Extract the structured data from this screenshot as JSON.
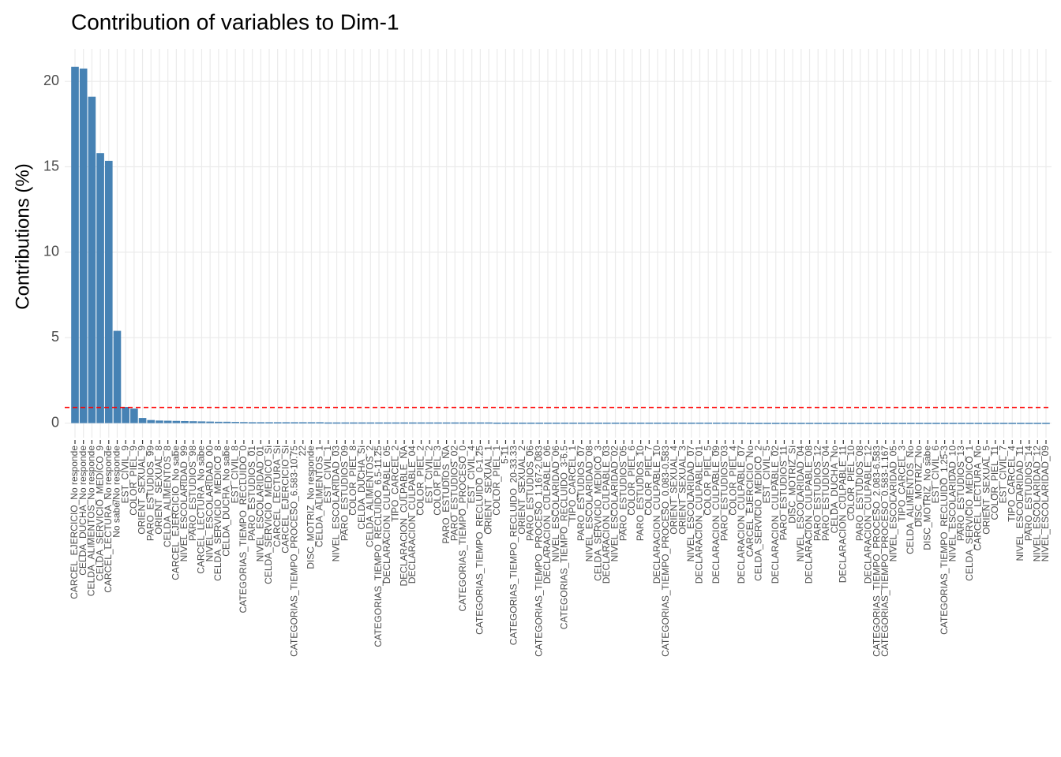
{
  "chart_data": {
    "type": "bar",
    "title": "Contribution of variables to Dim-1",
    "ylabel": "Contributions (%)",
    "color": "#4682b4",
    "reference_line": {
      "value": 0.92,
      "color": "#ff0000",
      "dashed": true
    },
    "ylim": [
      -0.85,
      21.9
    ],
    "yticks": [
      0,
      5,
      10,
      15,
      20
    ],
    "grid": true,
    "categories": [
      "CARCEL_EJERCICIO_No responde",
      "CELDA_DUCHA_No responde",
      "CELDA_ALIMENTOS_No responde",
      "CELDA_SERVICIO_MEDICO_9",
      "CARCEL_LECTURA_No responde",
      "No sabe/No responde",
      "EST_CIVIL_9",
      "COLOR_PIEL_9",
      "ORIENT_SEXUAL_9",
      "PARO_ESTUDIOS_99",
      "ORIENT_SEXUAL_8",
      "CELDA_ALIMENTOS_8",
      "CARCEL_EJERCICIO_No sabe",
      "NIVEL_ESCOLARIDAD_99",
      "PARO_ESTUDIOS_98",
      "CARCEL_LECTURA_No sabe",
      "NIVEL_ESCOLARIDAD_00",
      "CELDA_SERVICIO_MEDICO_8",
      "CELDA_DUCHA_No sabe",
      "EST_CIVIL_8",
      "CATEGORIAS_TIEMPO_RECLUIDO_0",
      "PARO_ESTUDIOS_01",
      "NIVEL_ESCOLARIDAD_01",
      "CELDA_SERVICIO_MEDICO_Si",
      "CARCEL_LECTURA_Si",
      "CARCEL_EJERCICIO_Si",
      "CATEGORIAS_TIEMPO_PROCESO_6.583-10.75",
      "22",
      "DISC_MOTRIZ_No responde",
      "CELDA_ALIMENTOS_1",
      "EST_CIVIL_1",
      "NIVEL_ESCOLARIDAD_03",
      "PARO_ESTUDIOS_09",
      "COLOR_PIEL_8",
      "CELDA_DUCHA_Si",
      "CELDA_ALIMENTOS_2",
      "CATEGORIAS_TIEMPO_RECLUIDO_6.5-11.25",
      "DECLARACION_CULPABLE_05",
      "TIPO_CARCEL_2",
      "DECLARACION_CULPABLE_NA",
      "DECLARACION_CULPABLE_04",
      "COLOR_PIEL_2",
      "EST_CIVIL_2",
      "COLOR_PIEL_3",
      "PARO_ESTUDIOS_NA",
      "PARO_ESTUDIOS_02",
      "CATEGORIAS_TIEMPO_PROCESO_0",
      "EST_CIVIL_4",
      "CATEGORIAS_TIEMPO_RECLUIDO_0-1.25",
      "ORIENT_SEXUAL_1",
      "COLOR_PIEL_1",
      "5-11",
      "CATEGORIAS_TIEMPO_RECLUIDO_20-33.33",
      "ORIENT_SEXUAL_2",
      "PARO_ESTUDIOS_06",
      "CATEGORIAS_TIEMPO_PROCESO_1.167-2.083",
      "DECLARACION_CULPABLE_06",
      "NIVEL_ESCOLARIDAD_06",
      "CATEGORIAS_TIEMPO_RECLUIDO_3-6.5",
      "TIPO_CARCEL_1",
      "PARO_ESTUDIOS_07",
      "NIVEL_ESCOLARIDAD_08",
      "CELDA_SERVICIO_MEDICO_3",
      "DECLARACION_CULPABLE_03",
      "NIVEL_ESCOLARIDAD_02",
      "PARO_ESTUDIOS_05",
      "COLOR_PIEL_6",
      "PARO_ESTUDIOS_10",
      "COLOR_PIEL_7",
      "DECLARACION_CULPABLE_10",
      "CATEGORIAS_TIEMPO_PROCESO_0.083-0.583",
      "ORIENT_SEXUAL_4",
      "ORIENT_SEXUAL_3",
      "NIVEL_ESCOLARIDAD_07",
      "DECLARACION_CULPABLE_01",
      "COLOR_PIEL_5",
      "DECLARACION_CULPABLE_09",
      "PARO_ESTUDIOS_03",
      "COLOR_PIEL_4",
      "DECLARACION_CULPABLE_07",
      "CARCEL_EJERCICIO_No",
      "CELDA_SERVICIO_MEDICO_2",
      "EST_CIVIL_5",
      "DECLARACION_CULPABLE_02",
      "PARO_ESTUDIOS_11",
      "DISC_MOTRIZ_Si",
      "NIVEL_ESCOLARIDAD_04",
      "DECLARACION_CULPABLE_08",
      "PARO_ESTUDIOS_12",
      "PARO_ESTUDIOS_04",
      "CELDA_DUCHA_No",
      "DECLARACION_CULPABLE_11",
      "COLOR_PIEL_10",
      "PARO_ESTUDIOS_08",
      "DECLARACION_CULPABLE_12",
      "CATEGORIAS_TIEMPO_PROCESO_2.083-6.583",
      "CATEGORIAS_TIEMPO_PROCESO_0.583-1.167",
      "NIVEL_ESCOLARIDAD_05",
      "TIPO_CARCEL_3",
      "CELDA_ALIMENTOS_No",
      "DISC_MOTRIZ_No",
      "DISC_MOTRIZ_No sabe",
      "EST_CIVIL_6",
      "CATEGORIAS_TIEMPO_RECLUIDO_1.25-3",
      "NIVEL_ESCOLARIDAD_10",
      "PARO_ESTUDIOS_13",
      "CELDA_SERVICIO_MEDICO_1",
      "CARCEL_LECTURA_No",
      "ORIENT_SEXUAL_5",
      "COLOR_PIEL_11",
      "EST_CIVIL_7",
      "TIPO_CARCEL_4",
      "NIVEL_ESCOLARIDAD_11",
      "PARO_ESTUDIOS_14",
      "NIVEL_ESCOLARIDAD_12",
      "NIVEL_ESCOLARIDAD_09"
    ],
    "values": [
      20.85,
      20.75,
      19.1,
      15.8,
      15.35,
      5.4,
      0.95,
      0.85,
      0.3,
      0.18,
      0.15,
      0.14,
      0.13,
      0.12,
      0.11,
      0.1,
      0.09,
      0.08,
      0.08,
      0.07,
      0.06,
      0.05,
      0.05,
      0.05,
      0.05,
      0.05,
      0.05,
      0.05,
      0.05,
      0.05,
      0.04,
      0.04,
      0.04,
      0.04,
      0.04,
      0.04,
      0.04,
      0.04,
      0.04,
      0.04,
      0.04,
      0.04,
      0.04,
      0.04,
      0.04,
      0.04,
      0.04,
      0.04,
      0.04,
      0.04,
      0.03,
      0.03,
      0.03,
      0.03,
      0.03,
      0.03,
      0.03,
      0.03,
      0.03,
      0.03,
      0.03,
      0.03,
      0.03,
      0.03,
      0.03,
      0.03,
      0.03,
      0.03,
      0.03,
      0.03,
      0.03,
      0.03,
      0.03,
      0.03,
      0.03,
      0.03,
      0.03,
      0.03,
      0.03,
      0.03,
      0.02,
      0.02,
      0.02,
      0.02,
      0.02,
      0.02,
      0.02,
      0.02,
      0.02,
      0.02,
      0.02,
      0.02,
      0.02,
      0.02,
      0.02,
      0.02,
      0.02,
      0.02,
      0.02,
      0.02,
      0.02,
      0.02,
      0.02,
      0.02,
      0.02,
      0.02,
      0.02,
      0.02,
      0.02,
      0.02,
      0.02,
      0.02,
      0.02,
      0.02,
      0.02,
      0.02
    ]
  }
}
